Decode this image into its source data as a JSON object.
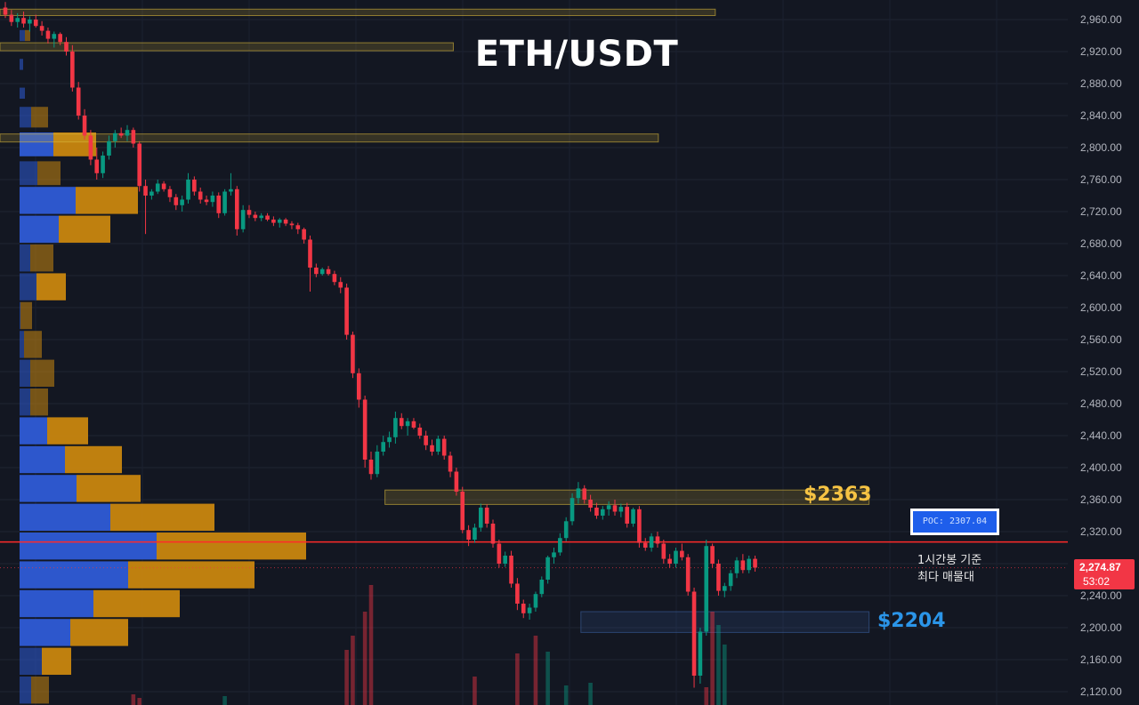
{
  "chart_data": {
    "type": "candlestick",
    "title": "ETH/USDT",
    "y_axis": {
      "ticks": [
        "2,960.00",
        "2,920.00",
        "2,880.00",
        "2,840.00",
        "2,800.00",
        "2,760.00",
        "2,720.00",
        "2,680.00",
        "2,640.00",
        "2,600.00",
        "2,560.00",
        "2,520.00",
        "2,480.00",
        "2,440.00",
        "2,400.00",
        "2,360.00",
        "2,320.00",
        "2,280.00",
        "2,240.00",
        "2,200.00",
        "2,160.00",
        "2,120.00"
      ],
      "ylim": [
        2105,
        2985
      ],
      "position": "right",
      "grid": true
    },
    "current_price": {
      "price": "2,274.87",
      "countdown": "53:02",
      "value": 2274.87,
      "color": "#f23645"
    },
    "levels": {
      "resistance": {
        "label": "$2363",
        "value": 2363,
        "color": "#f6c343"
      },
      "support": {
        "label": "$2204",
        "value": 2204,
        "color": "#2b95e8"
      },
      "poc": {
        "label": "POC: 2307.04",
        "value": 2307.04,
        "color": "#ff2a2a"
      }
    },
    "annotation": [
      "1시간봉 기준",
      "최다 매물대"
    ],
    "zones": [
      {
        "lo": 2965,
        "hi": 2973,
        "x0": 0.0,
        "x1": 0.628,
        "color": "#d8b83a"
      },
      {
        "lo": 2921,
        "hi": 2931,
        "x0": 0.0,
        "x1": 0.398,
        "color": "#d8b83a"
      },
      {
        "lo": 2807,
        "hi": 2817,
        "x0": 0.0,
        "x1": 0.578,
        "color": "#d8b83a"
      },
      {
        "lo": 2354,
        "hi": 2372,
        "x0": 0.338,
        "x1": 0.763,
        "color": "#d8b83a"
      },
      {
        "lo": 2194,
        "hi": 2220,
        "x0": 0.51,
        "x1": 0.763,
        "color": "#3a5f9e"
      }
    ],
    "volume_profile": {
      "bins": [
        {
          "lo": 2932,
          "hi": 2948,
          "buy": 6,
          "sell": 6
        },
        {
          "lo": 2896,
          "hi": 2912,
          "buy": 4,
          "sell": 0
        },
        {
          "lo": 2860,
          "hi": 2876,
          "buy": 6,
          "sell": 0
        },
        {
          "lo": 2824,
          "hi": 2852,
          "buy": 13,
          "sell": 19
        },
        {
          "lo": 2788,
          "hi": 2820,
          "buy": 38,
          "sell": 48
        },
        {
          "lo": 2752,
          "hi": 2784,
          "buy": 20,
          "sell": 26
        },
        {
          "lo": 2716,
          "hi": 2752,
          "buy": 63,
          "sell": 70
        },
        {
          "lo": 2680,
          "hi": 2716,
          "buy": 44,
          "sell": 58
        },
        {
          "lo": 2644,
          "hi": 2680,
          "buy": 12,
          "sell": 26
        },
        {
          "lo": 2608,
          "hi": 2644,
          "buy": 19,
          "sell": 33
        },
        {
          "lo": 2572,
          "hi": 2608,
          "buy": 1,
          "sell": 13
        },
        {
          "lo": 2536,
          "hi": 2572,
          "buy": 5,
          "sell": 20
        },
        {
          "lo": 2500,
          "hi": 2536,
          "buy": 12,
          "sell": 27
        },
        {
          "lo": 2464,
          "hi": 2500,
          "buy": 12,
          "sell": 20
        },
        {
          "lo": 2428,
          "hi": 2464,
          "buy": 31,
          "sell": 46
        },
        {
          "lo": 2392,
          "hi": 2428,
          "buy": 51,
          "sell": 64
        },
        {
          "lo": 2356,
          "hi": 2392,
          "buy": 64,
          "sell": 72
        },
        {
          "lo": 2320,
          "hi": 2356,
          "buy": 102,
          "sell": 117
        },
        {
          "lo": 2284,
          "hi": 2320,
          "buy": 154,
          "sell": 168
        },
        {
          "lo": 2248,
          "hi": 2284,
          "buy": 122,
          "sell": 142
        },
        {
          "lo": 2212,
          "hi": 2248,
          "buy": 83,
          "sell": 97
        },
        {
          "lo": 2176,
          "hi": 2212,
          "buy": 57,
          "sell": 65
        },
        {
          "lo": 2140,
          "hi": 2176,
          "buy": 25,
          "sell": 33
        },
        {
          "lo": 2104,
          "hi": 2140,
          "buy": 13,
          "sell": 20
        }
      ],
      "buy_color": "#2e5bd6",
      "sell_color": "#c8860f"
    },
    "candles": [
      [
        2975,
        2982,
        2962,
        2966
      ],
      [
        2966,
        2972,
        2952,
        2957
      ],
      [
        2957,
        2968,
        2950,
        2962
      ],
      [
        2962,
        2970,
        2950,
        2955
      ],
      [
        2955,
        2964,
        2945,
        2960
      ],
      [
        2960,
        2966,
        2950,
        2952
      ],
      [
        2952,
        2958,
        2940,
        2946
      ],
      [
        2946,
        2950,
        2930,
        2936
      ],
      [
        2936,
        2945,
        2925,
        2942
      ],
      [
        2942,
        2944,
        2928,
        2932
      ],
      [
        2932,
        2938,
        2915,
        2920
      ],
      [
        2920,
        2928,
        2870,
        2875
      ],
      [
        2875,
        2882,
        2835,
        2840
      ],
      [
        2840,
        2848,
        2810,
        2815
      ],
      [
        2815,
        2822,
        2778,
        2785
      ],
      [
        2785,
        2800,
        2760,
        2768
      ],
      [
        2768,
        2795,
        2762,
        2790
      ],
      [
        2790,
        2815,
        2785,
        2808
      ],
      [
        2808,
        2822,
        2800,
        2818
      ],
      [
        2818,
        2825,
        2812,
        2815
      ],
      [
        2815,
        2828,
        2808,
        2822
      ],
      [
        2822,
        2825,
        2800,
        2805
      ],
      [
        2805,
        2808,
        2745,
        2752
      ],
      [
        2752,
        2760,
        2692,
        2740
      ],
      [
        2740,
        2748,
        2735,
        2745
      ],
      [
        2745,
        2760,
        2742,
        2755
      ],
      [
        2755,
        2758,
        2745,
        2748
      ],
      [
        2748,
        2752,
        2732,
        2738
      ],
      [
        2738,
        2742,
        2722,
        2728
      ],
      [
        2728,
        2740,
        2720,
        2735
      ],
      [
        2735,
        2768,
        2730,
        2760
      ],
      [
        2760,
        2764,
        2740,
        2745
      ],
      [
        2745,
        2750,
        2730,
        2735
      ],
      [
        2735,
        2740,
        2728,
        2732
      ],
      [
        2732,
        2745,
        2726,
        2740
      ],
      [
        2740,
        2744,
        2712,
        2718
      ],
      [
        2718,
        2748,
        2715,
        2745
      ],
      [
        2745,
        2768,
        2740,
        2748
      ],
      [
        2748,
        2752,
        2690,
        2698
      ],
      [
        2698,
        2728,
        2694,
        2722
      ],
      [
        2722,
        2728,
        2712,
        2716
      ],
      [
        2716,
        2720,
        2708,
        2712
      ],
      [
        2712,
        2718,
        2708,
        2715
      ],
      [
        2715,
        2718,
        2708,
        2710
      ],
      [
        2710,
        2714,
        2702,
        2706
      ],
      [
        2706,
        2712,
        2700,
        2710
      ],
      [
        2710,
        2712,
        2702,
        2705
      ],
      [
        2705,
        2708,
        2698,
        2703
      ],
      [
        2703,
        2706,
        2692,
        2698
      ],
      [
        2698,
        2700,
        2680,
        2685
      ],
      [
        2685,
        2690,
        2620,
        2650
      ],
      [
        2650,
        2655,
        2638,
        2642
      ],
      [
        2642,
        2650,
        2640,
        2648
      ],
      [
        2648,
        2652,
        2640,
        2642
      ],
      [
        2642,
        2646,
        2628,
        2632
      ],
      [
        2632,
        2638,
        2618,
        2625
      ],
      [
        2625,
        2630,
        2560,
        2566
      ],
      [
        2566,
        2570,
        2512,
        2518
      ],
      [
        2518,
        2524,
        2475,
        2485
      ],
      [
        2485,
        2490,
        2400,
        2410
      ],
      [
        2410,
        2420,
        2385,
        2392
      ],
      [
        2392,
        2428,
        2388,
        2420
      ],
      [
        2420,
        2440,
        2415,
        2432
      ],
      [
        2432,
        2445,
        2425,
        2438
      ],
      [
        2438,
        2470,
        2430,
        2462
      ],
      [
        2462,
        2468,
        2448,
        2452
      ],
      [
        2452,
        2462,
        2440,
        2458
      ],
      [
        2458,
        2462,
        2448,
        2450
      ],
      [
        2450,
        2455,
        2436,
        2440
      ],
      [
        2440,
        2446,
        2422,
        2428
      ],
      [
        2428,
        2435,
        2415,
        2420
      ],
      [
        2420,
        2440,
        2416,
        2436
      ],
      [
        2436,
        2440,
        2410,
        2415
      ],
      [
        2415,
        2420,
        2388,
        2395
      ],
      [
        2395,
        2400,
        2365,
        2370
      ],
      [
        2370,
        2376,
        2318,
        2322
      ],
      [
        2322,
        2328,
        2302,
        2310
      ],
      [
        2310,
        2330,
        2306,
        2325
      ],
      [
        2325,
        2355,
        2320,
        2350
      ],
      [
        2350,
        2354,
        2325,
        2330
      ],
      [
        2330,
        2335,
        2300,
        2305
      ],
      [
        2305,
        2310,
        2275,
        2280
      ],
      [
        2280,
        2295,
        2276,
        2290
      ],
      [
        2290,
        2296,
        2250,
        2255
      ],
      [
        2255,
        2262,
        2222,
        2230
      ],
      [
        2230,
        2235,
        2212,
        2218
      ],
      [
        2218,
        2230,
        2210,
        2225
      ],
      [
        2225,
        2245,
        2220,
        2242
      ],
      [
        2242,
        2264,
        2238,
        2260
      ],
      [
        2260,
        2290,
        2255,
        2288
      ],
      [
        2288,
        2300,
        2280,
        2294
      ],
      [
        2294,
        2318,
        2290,
        2312
      ],
      [
        2312,
        2338,
        2308,
        2333
      ],
      [
        2333,
        2368,
        2328,
        2362
      ],
      [
        2362,
        2382,
        2355,
        2374
      ],
      [
        2374,
        2378,
        2355,
        2360
      ],
      [
        2360,
        2366,
        2345,
        2350
      ],
      [
        2350,
        2356,
        2336,
        2340
      ],
      [
        2340,
        2352,
        2335,
        2348
      ],
      [
        2348,
        2358,
        2340,
        2353
      ],
      [
        2353,
        2360,
        2340,
        2345
      ],
      [
        2345,
        2355,
        2338,
        2351
      ],
      [
        2351,
        2356,
        2325,
        2330
      ],
      [
        2330,
        2350,
        2326,
        2348
      ],
      [
        2348,
        2352,
        2300,
        2306
      ],
      [
        2306,
        2312,
        2296,
        2300
      ],
      [
        2300,
        2318,
        2295,
        2314
      ],
      [
        2314,
        2320,
        2300,
        2305
      ],
      [
        2305,
        2310,
        2280,
        2286
      ],
      [
        2286,
        2292,
        2275,
        2280
      ],
      [
        2280,
        2300,
        2275,
        2296
      ],
      [
        2296,
        2305,
        2284,
        2288
      ],
      [
        2288,
        2292,
        2240,
        2245
      ],
      [
        2245,
        2250,
        2125,
        2140
      ],
      [
        2140,
        2200,
        2130,
        2195
      ],
      [
        2195,
        2310,
        2190,
        2302
      ],
      [
        2302,
        2305,
        2275,
        2280
      ],
      [
        2280,
        2285,
        2240,
        2246
      ],
      [
        2246,
        2256,
        2238,
        2252
      ],
      [
        2252,
        2272,
        2246,
        2268
      ],
      [
        2268,
        2288,
        2262,
        2284
      ],
      [
        2284,
        2292,
        2268,
        2272
      ],
      [
        2272,
        2290,
        2268,
        2286
      ],
      [
        2286,
        2290,
        2270,
        2275
      ]
    ],
    "volumes": [
      {
        "i": 21,
        "v": 12,
        "c": "red"
      },
      {
        "i": 22,
        "v": 8,
        "c": "red"
      },
      {
        "i": 36,
        "v": 10,
        "c": "green"
      },
      {
        "i": 56,
        "v": 62,
        "c": "red"
      },
      {
        "i": 57,
        "v": 78,
        "c": "red"
      },
      {
        "i": 59,
        "v": 105,
        "c": "red"
      },
      {
        "i": 60,
        "v": 135,
        "c": "red"
      },
      {
        "i": 77,
        "v": 32,
        "c": "red"
      },
      {
        "i": 84,
        "v": 58,
        "c": "red"
      },
      {
        "i": 87,
        "v": 78,
        "c": "red"
      },
      {
        "i": 89,
        "v": 60,
        "c": "green"
      },
      {
        "i": 92,
        "v": 22,
        "c": "green"
      },
      {
        "i": 96,
        "v": 25,
        "c": "green"
      },
      {
        "i": 115,
        "v": 20,
        "c": "red"
      },
      {
        "i": 116,
        "v": 105,
        "c": "red"
      },
      {
        "i": 117,
        "v": 90,
        "c": "green"
      },
      {
        "i": 118,
        "v": 68,
        "c": "green"
      }
    ]
  }
}
